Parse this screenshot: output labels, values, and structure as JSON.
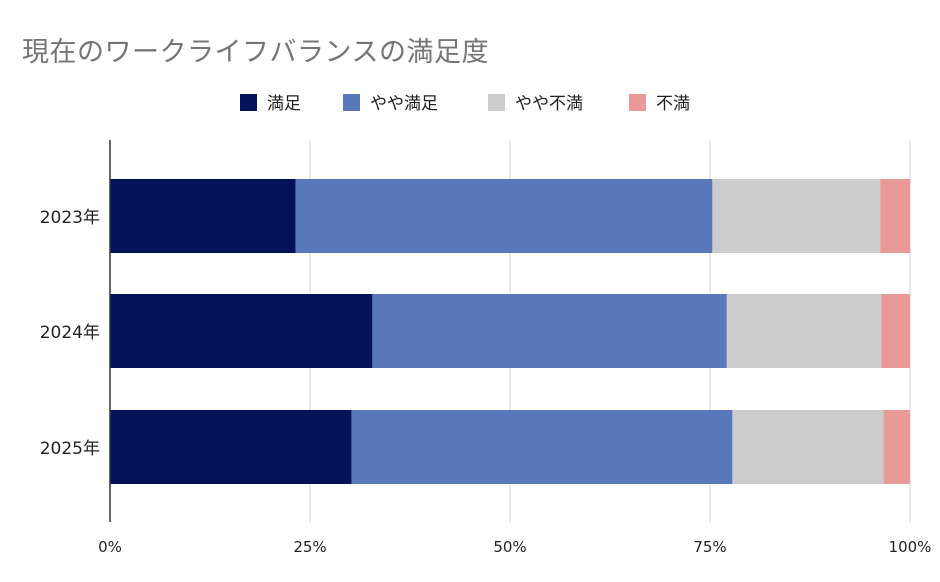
{
  "chart_data": {
    "type": "bar",
    "orientation": "horizontal",
    "stacked": "percent",
    "title": "現在のワークライフバランスの満足度",
    "categories": [
      "2023年",
      "2024年",
      "2025年"
    ],
    "series": [
      {
        "name": "満足",
        "color": "#03135a",
        "values": [
          23.2,
          32.8,
          30.2
        ]
      },
      {
        "name": "やや満足",
        "color": "#5a78bc",
        "values": [
          52.1,
          44.3,
          47.6
        ]
      },
      {
        "name": "やや不満",
        "color": "#cccccc",
        "values": [
          21.0,
          19.3,
          18.9
        ]
      },
      {
        "name": "不満",
        "color": "#ea9999",
        "values": [
          3.7,
          3.6,
          3.3
        ]
      }
    ],
    "x_ticks": [
      "0%",
      "25%",
      "50%",
      "75%",
      "100%"
    ],
    "xlim": [
      0,
      100
    ],
    "xlabel": "",
    "ylabel": "",
    "grid": true,
    "legend": "top-center"
  }
}
